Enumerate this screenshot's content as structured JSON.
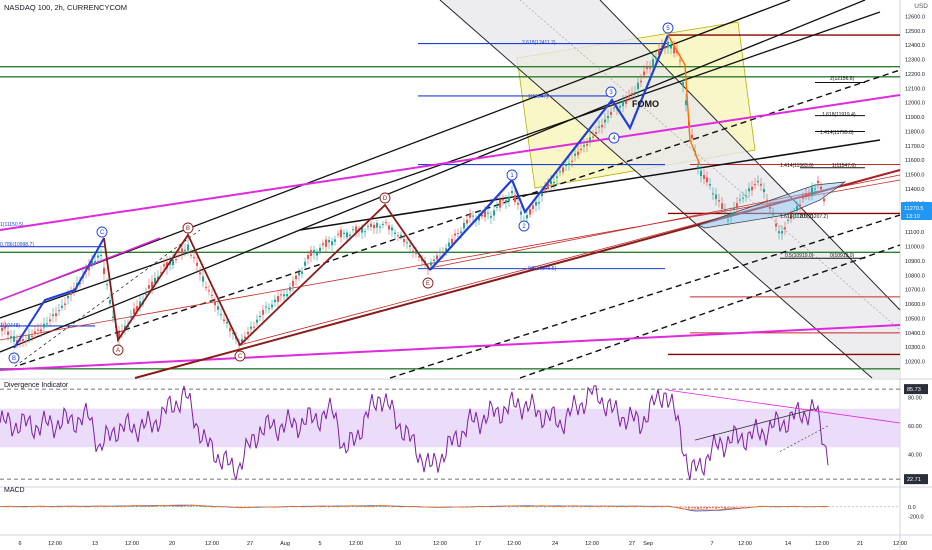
{
  "header": {
    "symbol_title": "NASDAQ 100, 2h, CURRENCYCOM",
    "currency": "USD"
  },
  "colors": {
    "up_candle": "#26a69a",
    "down_candle": "#ef5350",
    "wave_blue": "#1e3fd8",
    "corrective_red": "#8b1a1a",
    "magenta": "#e028e0",
    "green_level": "#2e7d32",
    "divergence_line": "#7b1fa2",
    "divergence_band": "#e6d5f7",
    "price_badge": "#2196f3"
  },
  "price_axis": {
    "ticks": [
      "12600.0",
      "12500.0",
      "12400.0",
      "12300.0",
      "12200.0",
      "12100.0",
      "12000.0",
      "11900.0",
      "11800.0",
      "11700.0",
      "11600.0",
      "11500.0",
      "11400.0",
      "11300.0",
      "11200.0",
      "11100.0",
      "11000.0",
      "10900.0",
      "10800.0",
      "10700.0",
      "10600.0",
      "10500.0",
      "10400.0",
      "10300.0",
      "10200.0"
    ],
    "last_price": "11270.5",
    "countdown": "13:10"
  },
  "divergence_axis": {
    "ticks": [
      "80.00",
      "60.00",
      "40.00"
    ],
    "upper_level": "85.73",
    "lower_level": "22.71"
  },
  "macd_axis": {
    "ticks": [
      "0.0",
      "-200.0"
    ]
  },
  "time_axis": [
    "6",
    "12:00",
    "13",
    "12:00",
    "20",
    "12:00",
    "27",
    "Aug",
    "5",
    "12:00",
    "10",
    "12:00",
    "17",
    "12:00",
    "24",
    "12:00",
    "27",
    "Sep",
    "7",
    "12:00",
    "14",
    "12:00",
    "21",
    "12:00"
  ],
  "annotations": {
    "fib_labels": [
      "2.618(12411.2)",
      "1(12047)",
      "2(12156.6)",
      "1.618(11919.4)",
      "1.414(11799.8)",
      "1.414(11563.6)",
      "1(11547.6)",
      "1.618(11207.7)",
      "0.5(11207.2)",
      "0.786(10998.7)",
      "1(11150.5)",
      "0.786(10998.7)",
      "0.5(10919.0)",
      "0(10919.0)",
      "0.5(10846.5)",
      "1(10448)"
    ],
    "wave_labels": [
      "1",
      "2",
      "3",
      "4",
      "5",
      "A",
      "B",
      "C",
      "D",
      "E",
      "B",
      "C"
    ],
    "fomo": "FOMO"
  },
  "indicators": {
    "divergence_name": "Divergence Indicator",
    "macd_name": "MACD"
  },
  "chart_data": [
    {
      "type": "candlestick",
      "title": "NASDAQ 100, 2h, CURRENCYCOM",
      "ylim": [
        10100,
        12700
      ],
      "x_labels": [
        "6",
        "12:00",
        "13",
        "12:00",
        "20",
        "12:00",
        "27",
        "Aug",
        "5",
        "12:00",
        "10",
        "12:00",
        "17",
        "12:00",
        "24",
        "12:00",
        "27",
        "Sep",
        "7",
        "12:00",
        "14",
        "12:00",
        "21",
        "12:00"
      ],
      "series": [
        {
          "name": "price path (approx.)",
          "points": [
            [
              0,
              10440
            ],
            [
              20,
              10330
            ],
            [
              40,
              10420
            ],
            [
              60,
              10560
            ],
            [
              80,
              10760
            ],
            [
              100,
              10960
            ],
            [
              118,
              10360
            ],
            [
              140,
              10600
            ],
            [
              160,
              10820
            ],
            [
              188,
              11000
            ],
            [
              208,
              10700
            ],
            [
              225,
              10480
            ],
            [
              240,
              10320
            ],
            [
              265,
              10560
            ],
            [
              290,
              10700
            ],
            [
              310,
              10940
            ],
            [
              340,
              11080
            ],
            [
              385,
              11160
            ],
            [
              405,
              11040
            ],
            [
              428,
              10860
            ],
            [
              450,
              11020
            ],
            [
              470,
              11200
            ],
            [
              490,
              11220
            ],
            [
              512,
              11370
            ],
            [
              525,
              11180
            ],
            [
              545,
              11390
            ],
            [
              570,
              11590
            ],
            [
              595,
              11780
            ],
            [
              612,
              11940
            ],
            [
              630,
              12030
            ],
            [
              652,
              12280
            ],
            [
              668,
              12420
            ],
            [
              680,
              12300
            ],
            [
              690,
              11800
            ],
            [
              700,
              11520
            ],
            [
              712,
              11400
            ],
            [
              728,
              11200
            ],
            [
              745,
              11360
            ],
            [
              760,
              11460
            ],
            [
              780,
              11080
            ],
            [
              800,
              11300
            ],
            [
              818,
              11440
            ],
            [
              828,
              11260
            ]
          ]
        }
      ],
      "levels": [
        12470,
        12250,
        12180,
        11570,
        11230,
        10960,
        10650,
        10470,
        10400,
        10250,
        10150
      ],
      "fib_lines": [
        {
          "label": "2.618(12411.2)",
          "value": 12411.2
        },
        {
          "label": "1(12047)",
          "value": 12047
        },
        {
          "label": "1(11547.6)",
          "value": 11547.6
        },
        {
          "label": "0.5(10919.0)",
          "value": 10919.0
        },
        {
          "label": "0.5(10846.5)",
          "value": 10846.5
        }
      ]
    },
    {
      "type": "line",
      "title": "Divergence Indicator",
      "ylim": [
        20,
        90
      ],
      "reference_levels": [
        85.73,
        22.71
      ],
      "band": [
        45,
        72
      ],
      "series": [
        {
          "name": "Divergence Indicator",
          "points": [
            [
              0,
              62
            ],
            [
              40,
              60
            ],
            [
              90,
              66
            ],
            [
              100,
              44
            ],
            [
              115,
              58
            ],
            [
              150,
              60
            ],
            [
              185,
              82
            ],
            [
              205,
              48
            ],
            [
              235,
              28
            ],
            [
              260,
              58
            ],
            [
              300,
              62
            ],
            [
              335,
              70
            ],
            [
              345,
              40
            ],
            [
              380,
              82
            ],
            [
              410,
              50
            ],
            [
              430,
              30
            ],
            [
              470,
              62
            ],
            [
              520,
              76
            ],
            [
              560,
              62
            ],
            [
              595,
              85
            ],
            [
              612,
              70
            ],
            [
              640,
              62
            ],
            [
              665,
              85
            ],
            [
              680,
              58
            ],
            [
              690,
              25
            ],
            [
              720,
              48
            ],
            [
              760,
              55
            ],
            [
              800,
              68
            ],
            [
              815,
              72
            ],
            [
              828,
              40
            ]
          ]
        }
      ]
    },
    {
      "type": "bar",
      "title": "MACD",
      "ylim": [
        -250,
        100
      ],
      "series": [
        {
          "name": "MACD histogram (approx.)",
          "points": [
            [
              0,
              10
            ],
            [
              100,
              20
            ],
            [
              190,
              60
            ],
            [
              240,
              -30
            ],
            [
              300,
              15
            ],
            [
              380,
              40
            ],
            [
              440,
              -20
            ],
            [
              520,
              35
            ],
            [
              600,
              25
            ],
            [
              670,
              15
            ],
            [
              695,
              -150
            ],
            [
              720,
              -120
            ],
            [
              760,
              10
            ],
            [
              820,
              8
            ]
          ]
        }
      ]
    }
  ]
}
